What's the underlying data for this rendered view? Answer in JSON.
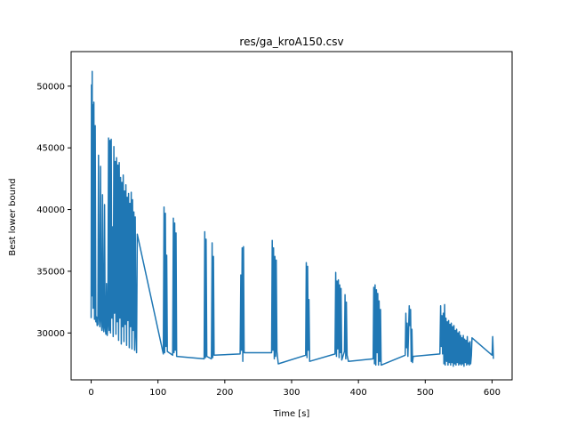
{
  "chart_data": {
    "type": "line",
    "title": "res/ga_kroA150.csv",
    "xlabel": "Time [s]",
    "ylabel": "Best lower bound",
    "xlim": [
      -30,
      630
    ],
    "ylim": [
      26200,
      52800
    ],
    "xticks": [
      0,
      100,
      200,
      300,
      400,
      500,
      600
    ],
    "yticks": [
      30000,
      35000,
      40000,
      45000,
      50000
    ],
    "grid": false,
    "color": "#1f77b4",
    "series": [
      {
        "points": [
          [
            0,
            31200
          ],
          [
            0.5,
            50100
          ],
          [
            1,
            33000
          ],
          [
            1.5,
            51200
          ],
          [
            2,
            33500
          ],
          [
            2.5,
            48500
          ],
          [
            3,
            32000
          ],
          [
            4,
            48700
          ],
          [
            5,
            31100
          ],
          [
            6,
            46800
          ],
          [
            7,
            30900
          ],
          [
            8,
            31300
          ],
          [
            9,
            30600
          ],
          [
            10,
            30700
          ],
          [
            11,
            44400
          ],
          [
            12,
            31200
          ],
          [
            13,
            30500
          ],
          [
            14,
            43500
          ],
          [
            15,
            31000
          ],
          [
            16,
            30200
          ],
          [
            17,
            41200
          ],
          [
            18,
            30500
          ],
          [
            19,
            30100
          ],
          [
            20,
            40400
          ],
          [
            21,
            30400
          ],
          [
            22,
            29900
          ],
          [
            23,
            34000
          ],
          [
            24,
            29800
          ],
          [
            25,
            30600
          ],
          [
            26,
            45800
          ],
          [
            27,
            30200
          ],
          [
            28,
            45600
          ],
          [
            29,
            30000
          ],
          [
            30,
            45700
          ],
          [
            31,
            31200
          ],
          [
            32,
            38600
          ],
          [
            33,
            29700
          ],
          [
            34,
            45100
          ],
          [
            35,
            31600
          ],
          [
            36,
            43900
          ],
          [
            37,
            29900
          ],
          [
            38,
            44200
          ],
          [
            39,
            30900
          ],
          [
            40,
            43600
          ],
          [
            41,
            29400
          ],
          [
            42,
            43800
          ],
          [
            43,
            31200
          ],
          [
            44,
            42600
          ],
          [
            45,
            29100
          ],
          [
            46,
            42200
          ],
          [
            47,
            30500
          ],
          [
            48,
            42800
          ],
          [
            49,
            29300
          ],
          [
            50,
            41500
          ],
          [
            51,
            30700
          ],
          [
            52,
            42000
          ],
          [
            53,
            29000
          ],
          [
            54,
            41000
          ],
          [
            55,
            31000
          ],
          [
            56,
            41300
          ],
          [
            57,
            28800
          ],
          [
            58,
            40500
          ],
          [
            59,
            30500
          ],
          [
            60,
            41400
          ],
          [
            61,
            28700
          ],
          [
            62,
            40800
          ],
          [
            63,
            30200
          ],
          [
            64,
            39800
          ],
          [
            65,
            28600
          ],
          [
            66,
            39400
          ],
          [
            67,
            29800
          ],
          [
            68,
            28400
          ],
          [
            69,
            38000
          ],
          [
            108,
            28300
          ],
          [
            109,
            40200
          ],
          [
            110,
            28400
          ],
          [
            111,
            39700
          ],
          [
            112,
            28900
          ],
          [
            113,
            36300
          ],
          [
            114,
            28500
          ],
          [
            122,
            28200
          ],
          [
            123,
            39300
          ],
          [
            124,
            28400
          ],
          [
            125,
            38900
          ],
          [
            126,
            28600
          ],
          [
            127,
            38100
          ],
          [
            128,
            28100
          ],
          [
            169,
            27900
          ],
          [
            170,
            38200
          ],
          [
            171,
            28000
          ],
          [
            172,
            37600
          ],
          [
            173,
            28100
          ],
          [
            180,
            27900
          ],
          [
            181,
            37300
          ],
          [
            182,
            28000
          ],
          [
            183,
            36200
          ],
          [
            184,
            28200
          ],
          [
            223,
            28300
          ],
          [
            224,
            34700
          ],
          [
            225,
            28600
          ],
          [
            226,
            36900
          ],
          [
            227,
            27700
          ],
          [
            228,
            37000
          ],
          [
            229,
            28400
          ],
          [
            270,
            28400
          ],
          [
            271,
            37500
          ],
          [
            272,
            28600
          ],
          [
            273,
            36900
          ],
          [
            274,
            27900
          ],
          [
            275,
            36200
          ],
          [
            276,
            28100
          ],
          [
            277,
            35900
          ],
          [
            278,
            28500
          ],
          [
            280,
            27500
          ],
          [
            321,
            28200
          ],
          [
            322,
            35700
          ],
          [
            323,
            28000
          ],
          [
            324,
            35400
          ],
          [
            325,
            28600
          ],
          [
            326,
            32700
          ],
          [
            327,
            27700
          ],
          [
            365,
            28300
          ],
          [
            366,
            34900
          ],
          [
            367,
            28100
          ],
          [
            368,
            34200
          ],
          [
            369,
            28700
          ],
          [
            370,
            34300
          ],
          [
            371,
            28000
          ],
          [
            372,
            33900
          ],
          [
            373,
            28400
          ],
          [
            374,
            33600
          ],
          [
            375,
            27800
          ],
          [
            379,
            28500
          ],
          [
            380,
            33100
          ],
          [
            381,
            27900
          ],
          [
            382,
            32500
          ],
          [
            383,
            28200
          ],
          [
            385,
            27700
          ],
          [
            422,
            27900
          ],
          [
            423,
            33700
          ],
          [
            424,
            27500
          ],
          [
            425,
            33900
          ],
          [
            426,
            27400
          ],
          [
            427,
            33500
          ],
          [
            428,
            28400
          ],
          [
            429,
            33200
          ],
          [
            430,
            27400
          ],
          [
            431,
            32600
          ],
          [
            432,
            27700
          ],
          [
            433,
            31900
          ],
          [
            434,
            27400
          ],
          [
            470,
            28200
          ],
          [
            471,
            31600
          ],
          [
            472,
            28800
          ],
          [
            473,
            30800
          ],
          [
            474,
            28100
          ],
          [
            476,
            32200
          ],
          [
            477,
            30600
          ],
          [
            478,
            31900
          ],
          [
            479,
            27700
          ],
          [
            480,
            30300
          ],
          [
            481,
            27600
          ],
          [
            482,
            28100
          ],
          [
            522,
            28300
          ],
          [
            523,
            32200
          ],
          [
            524,
            28900
          ],
          [
            525,
            31400
          ],
          [
            526,
            28300
          ],
          [
            527,
            31600
          ],
          [
            528,
            27500
          ],
          [
            529,
            32300
          ],
          [
            530,
            27400
          ],
          [
            531,
            31200
          ],
          [
            532,
            27700
          ],
          [
            533,
            30900
          ],
          [
            534,
            27400
          ],
          [
            535,
            31000
          ],
          [
            536,
            27600
          ],
          [
            537,
            30700
          ],
          [
            538,
            27400
          ],
          [
            539,
            30800
          ],
          [
            540,
            27600
          ],
          [
            541,
            30500
          ],
          [
            542,
            27300
          ],
          [
            543,
            30600
          ],
          [
            544,
            27500
          ],
          [
            545,
            30200
          ],
          [
            546,
            27400
          ],
          [
            547,
            30300
          ],
          [
            548,
            27600
          ],
          [
            549,
            30000
          ],
          [
            550,
            27400
          ],
          [
            551,
            30100
          ],
          [
            552,
            27500
          ],
          [
            553,
            29800
          ],
          [
            554,
            27400
          ],
          [
            555,
            29600
          ],
          [
            556,
            27500
          ],
          [
            557,
            29800
          ],
          [
            558,
            27300
          ],
          [
            559,
            29500
          ],
          [
            560,
            27600
          ],
          [
            561,
            29400
          ],
          [
            562,
            27400
          ],
          [
            563,
            29700
          ],
          [
            564,
            27500
          ],
          [
            565,
            29200
          ],
          [
            566,
            27400
          ],
          [
            567,
            29300
          ],
          [
            568,
            27500
          ],
          [
            569,
            28200
          ],
          [
            570,
            29600
          ],
          [
            600,
            28200
          ],
          [
            601,
            29700
          ],
          [
            602,
            27900
          ]
        ]
      }
    ]
  }
}
